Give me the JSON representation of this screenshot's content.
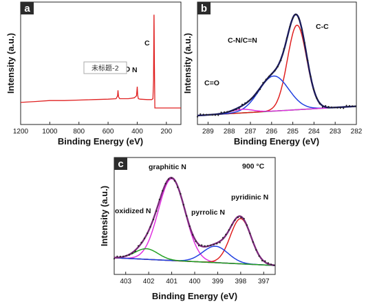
{
  "chart_data": [
    {
      "panel": "a",
      "type": "line",
      "xlabel": "Binding Energy (eV)",
      "ylabel": "Intensity (a.u.)",
      "xlim": [
        1200,
        100
      ],
      "x_ticks": [
        1200,
        1000,
        800,
        600,
        400,
        200
      ],
      "grid": false,
      "peaks": [
        {
          "label": "C",
          "x": 284.8,
          "rel_height": 1.0
        },
        {
          "label": "N",
          "x": 400,
          "rel_height": 0.12
        },
        {
          "label": "O",
          "x": 532,
          "rel_height": 0.08
        }
      ],
      "series": [
        {
          "color": "#e02020",
          "x": [
            1200,
            1100,
            1000,
            900,
            800,
            700,
            600,
            545,
            535,
            532,
            528,
            520,
            460,
            420,
            405,
            400,
            397,
            392,
            380,
            330,
            300,
            292,
            288,
            285,
            284.5,
            282,
            279,
            270,
            200,
            150,
            100
          ],
          "y": [
            0.06,
            0.07,
            0.08,
            0.08,
            0.085,
            0.09,
            0.095,
            0.1,
            0.13,
            0.19,
            0.12,
            0.1,
            0.1,
            0.11,
            0.13,
            0.23,
            0.14,
            0.1,
            0.095,
            0.09,
            0.09,
            0.1,
            0.3,
            1.0,
            1.0,
            0.5,
            0.0,
            0.0,
            0.0,
            0.0,
            0.0
          ]
        }
      ],
      "overlay_label": "未标题-2"
    },
    {
      "panel": "b",
      "type": "line",
      "xlabel": "Binding Energy (eV)",
      "ylabel": "Intensity (a.u.)",
      "xlim": [
        289.5,
        282
      ],
      "x_ticks": [
        289,
        288,
        287,
        286,
        285,
        284,
        283,
        282
      ],
      "grid": false,
      "components": [
        {
          "label": "C-C",
          "color": "#e02020",
          "center": 284.8,
          "amp": 0.82,
          "sigma": 0.45
        },
        {
          "label": "C-N/C=N",
          "color": "#2040e0",
          "center": 285.9,
          "amp": 0.34,
          "sigma": 0.7
        },
        {
          "label": "C=O",
          "color": "#e030e0",
          "center": 287.4,
          "amp": 0.035,
          "sigma": 0.5
        }
      ],
      "background": {
        "color": "#22a022",
        "left": 0.0,
        "right": 0.09
      },
      "envelope_color": "#1a1a5a"
    },
    {
      "panel": "c",
      "type": "line",
      "xlabel": "Binding Energy (eV)",
      "ylabel": "Intensity (a.u.)",
      "xlim": [
        403.5,
        396.5
      ],
      "x_ticks": [
        403,
        402,
        401,
        400,
        399,
        398,
        397
      ],
      "grid": false,
      "annotation": "900 °C",
      "components": [
        {
          "label": "graphitic N",
          "color": "#e030e0",
          "center": 401.0,
          "amp": 0.85,
          "sigma": 0.58
        },
        {
          "label": "pyridinic N",
          "color": "#e02020",
          "center": 398.0,
          "amp": 0.47,
          "sigma": 0.45
        },
        {
          "label": "pyrrolic N",
          "color": "#2040e0",
          "center": 399.1,
          "amp": 0.17,
          "sigma": 0.55
        },
        {
          "label": "oxidized N",
          "color": "#22a022",
          "center": 402.1,
          "amp": 0.11,
          "sigma": 0.5
        }
      ],
      "background": {
        "color": "#1a1a5a",
        "left": 0.08,
        "right": 0.0
      },
      "envelope_color": "#7a2a7a"
    }
  ],
  "labels": {
    "a": "a",
    "b": "b",
    "c": "c",
    "C": "C",
    "N": "N",
    "O": "O",
    "b_cc": "C-C",
    "b_cn": "C-N/C=N",
    "b_co": "C=O",
    "c_temp": "900 °C",
    "c_grN": "graphitic N",
    "c_pyrdN": "pyridinic N",
    "c_pyrrN": "pyrrolic N",
    "c_oxN": "oxidized N"
  }
}
